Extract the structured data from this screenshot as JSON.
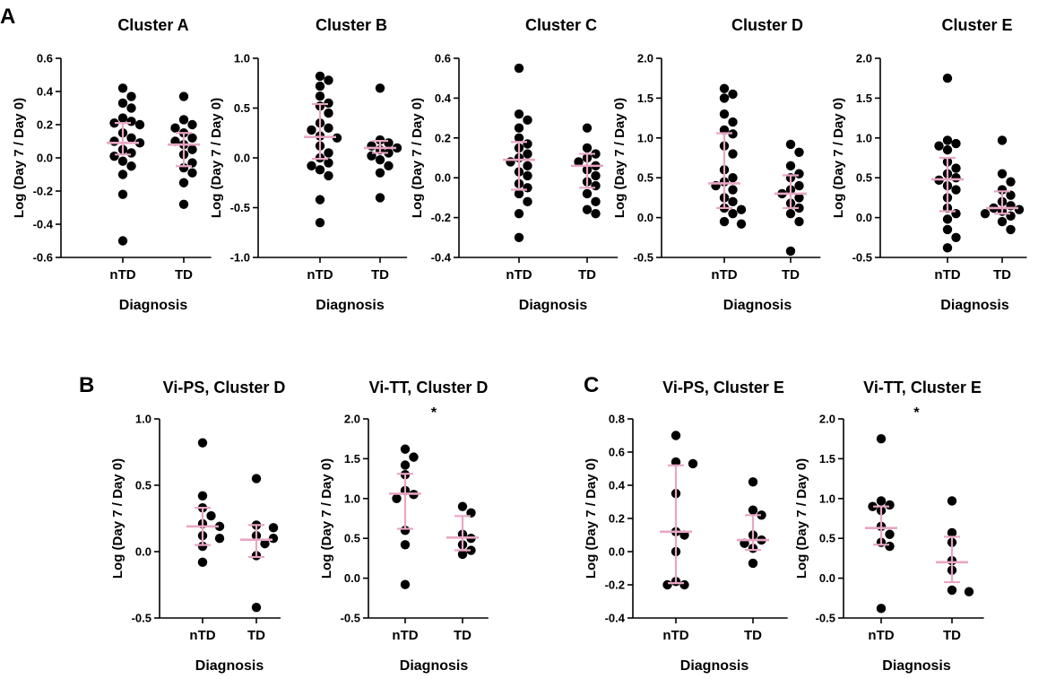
{
  "chart_data": [
    {
      "panel": "A",
      "type": "scatter",
      "title": "Cluster A",
      "xlabel": "Diagnosis",
      "ylabel": "Log (Day 7 / Day 0)",
      "categories": [
        "nTD",
        "TD"
      ],
      "ylim": [
        -0.6,
        0.6
      ],
      "yticks": [
        "-0.6",
        "-0.4",
        "-0.2",
        "0.0",
        "0.2",
        "0.4",
        "0.6"
      ],
      "significance": "",
      "groups": [
        {
          "name": "nTD",
          "median": 0.09,
          "iqr": [
            0.02,
            0.21
          ],
          "values": [
            0.42,
            0.37,
            0.33,
            0.3,
            0.24,
            0.22,
            0.21,
            0.2,
            0.15,
            0.12,
            0.1,
            0.09,
            0.05,
            0.03,
            0.01,
            -0.02,
            -0.05,
            -0.1,
            -0.22,
            -0.5
          ]
        },
        {
          "name": "TD",
          "median": 0.08,
          "iqr": [
            -0.05,
            0.15
          ],
          "values": [
            0.37,
            0.23,
            0.2,
            0.18,
            0.15,
            0.12,
            0.1,
            0.08,
            0.05,
            0.02,
            -0.03,
            -0.06,
            -0.09,
            -0.15,
            -0.28
          ]
        }
      ]
    },
    {
      "panel": "",
      "type": "scatter",
      "title": "Cluster B",
      "xlabel": "Diagnosis",
      "ylabel": "Log (Day 7 / Day 0)",
      "categories": [
        "nTD",
        "TD"
      ],
      "ylim": [
        -1.0,
        1.0
      ],
      "yticks": [
        "-1.0",
        "-0.5",
        "0.0",
        "0.5",
        "1.0"
      ],
      "significance": "",
      "groups": [
        {
          "name": "nTD",
          "median": 0.21,
          "iqr": [
            -0.01,
            0.54
          ],
          "values": [
            0.82,
            0.78,
            0.72,
            0.62,
            0.55,
            0.52,
            0.45,
            0.35,
            0.3,
            0.28,
            0.22,
            0.2,
            0.12,
            0.05,
            0.0,
            -0.05,
            -0.08,
            -0.12,
            -0.18,
            -0.42,
            -0.65
          ]
        },
        {
          "name": "TD",
          "median": 0.1,
          "iqr": [
            0.05,
            0.17
          ],
          "values": [
            0.7,
            0.18,
            0.15,
            0.12,
            0.1,
            0.08,
            0.05,
            0.02,
            -0.02,
            -0.08,
            -0.15,
            -0.4
          ]
        }
      ]
    },
    {
      "panel": "",
      "type": "scatter",
      "title": "Cluster C",
      "xlabel": "Diagnosis",
      "ylabel": "Log (Day 7 / Day 0)",
      "categories": [
        "nTD",
        "TD"
      ],
      "ylim": [
        -0.4,
        0.6
      ],
      "yticks": [
        "-0.4",
        "-0.2",
        "0.0",
        "0.2",
        "0.4",
        "0.6"
      ],
      "significance": "",
      "groups": [
        {
          "name": "nTD",
          "median": 0.09,
          "iqr": [
            -0.06,
            0.18
          ],
          "values": [
            0.55,
            0.32,
            0.29,
            0.25,
            0.2,
            0.17,
            0.15,
            0.12,
            0.1,
            0.08,
            0.06,
            0.03,
            0.01,
            -0.03,
            -0.05,
            -0.08,
            -0.12,
            -0.18,
            -0.3
          ]
        },
        {
          "name": "TD",
          "median": 0.06,
          "iqr": [
            -0.05,
            0.12
          ],
          "values": [
            0.25,
            0.15,
            0.12,
            0.1,
            0.08,
            0.06,
            0.04,
            0.01,
            -0.02,
            -0.04,
            -0.08,
            -0.12,
            -0.16,
            -0.18
          ]
        }
      ]
    },
    {
      "panel": "",
      "type": "scatter",
      "title": "Cluster D",
      "xlabel": "Diagnosis",
      "ylabel": "Log (Day 7 / Day 0)",
      "categories": [
        "nTD",
        "TD"
      ],
      "ylim": [
        -0.5,
        2.0
      ],
      "yticks": [
        "-0.5",
        "0.0",
        "0.5",
        "1.0",
        "1.5",
        "2.0"
      ],
      "significance": "",
      "groups": [
        {
          "name": "nTD",
          "median": 0.43,
          "iqr": [
            0.12,
            1.06
          ],
          "values": [
            1.62,
            1.55,
            1.5,
            1.3,
            1.2,
            1.1,
            1.05,
            0.9,
            0.8,
            0.6,
            0.5,
            0.45,
            0.4,
            0.35,
            0.25,
            0.2,
            0.12,
            0.1,
            0.05,
            -0.05,
            -0.08
          ]
        },
        {
          "name": "TD",
          "median": 0.3,
          "iqr": [
            0.12,
            0.53
          ],
          "values": [
            0.92,
            0.82,
            0.65,
            0.55,
            0.5,
            0.4,
            0.35,
            0.3,
            0.25,
            0.18,
            0.12,
            0.05,
            -0.05,
            -0.42
          ]
        }
      ]
    },
    {
      "panel": "",
      "type": "scatter",
      "title": "Cluster E",
      "xlabel": "Diagnosis",
      "ylabel": "Log (Day 7 / Day 0)",
      "categories": [
        "nTD",
        "TD"
      ],
      "ylim": [
        -0.5,
        2.0
      ],
      "yticks": [
        "-0.5",
        "0.0",
        "0.5",
        "1.0",
        "1.5",
        "2.0"
      ],
      "significance": "",
      "groups": [
        {
          "name": "nTD",
          "median": 0.48,
          "iqr": [
            0.08,
            0.75
          ],
          "values": [
            1.75,
            0.97,
            0.93,
            0.9,
            0.85,
            0.7,
            0.62,
            0.55,
            0.5,
            0.47,
            0.4,
            0.35,
            0.25,
            0.12,
            0.05,
            -0.02,
            -0.15,
            -0.25,
            -0.38
          ]
        },
        {
          "name": "TD",
          "median": 0.12,
          "iqr": [
            0.05,
            0.33
          ],
          "values": [
            0.97,
            0.55,
            0.45,
            0.35,
            0.28,
            0.2,
            0.15,
            0.12,
            0.1,
            0.08,
            0.05,
            0.02,
            -0.05,
            -0.15
          ]
        }
      ]
    },
    {
      "panel": "B",
      "type": "scatter",
      "title": "Vi-PS, Cluster D",
      "xlabel": "Diagnosis",
      "ylabel": "Log (Day 7 / Day 0)",
      "categories": [
        "nTD",
        "TD"
      ],
      "ylim": [
        -0.5,
        1.0
      ],
      "yticks": [
        "-0.5",
        "0.0",
        "0.5",
        "1.0"
      ],
      "significance": "",
      "groups": [
        {
          "name": "nTD",
          "median": 0.19,
          "iqr": [
            0.05,
            0.33
          ],
          "values": [
            0.82,
            0.42,
            0.33,
            0.27,
            0.21,
            0.19,
            0.12,
            0.1,
            0.04,
            -0.08
          ]
        },
        {
          "name": "TD",
          "median": 0.09,
          "iqr": [
            -0.04,
            0.2
          ],
          "values": [
            0.55,
            0.2,
            0.18,
            0.12,
            0.1,
            0.06,
            -0.03,
            -0.42
          ]
        }
      ]
    },
    {
      "panel": "",
      "type": "scatter",
      "title": "Vi-TT, Cluster D",
      "xlabel": "Diagnosis",
      "ylabel": "Log (Day 7 / Day 0)",
      "categories": [
        "nTD",
        "TD"
      ],
      "ylim": [
        -0.5,
        2.0
      ],
      "yticks": [
        "-0.5",
        "0.0",
        "0.5",
        "1.0",
        "1.5",
        "2.0"
      ],
      "significance": "*",
      "groups": [
        {
          "name": "nTD",
          "median": 1.06,
          "iqr": [
            0.62,
            1.31
          ],
          "values": [
            1.62,
            1.52,
            1.42,
            1.3,
            1.1,
            1.05,
            1.0,
            0.6,
            0.42,
            -0.08
          ]
        },
        {
          "name": "TD",
          "median": 0.51,
          "iqr": [
            0.35,
            0.78
          ],
          "values": [
            0.9,
            0.82,
            0.55,
            0.5,
            0.42,
            0.35,
            0.3
          ]
        }
      ]
    },
    {
      "panel": "C",
      "type": "scatter",
      "title": "Vi-PS, Cluster E",
      "xlabel": "Diagnosis",
      "ylabel": "Log (Day 7 / Day 0)",
      "categories": [
        "nTD",
        "TD"
      ],
      "ylim": [
        -0.4,
        0.8
      ],
      "yticks": [
        "-0.4",
        "-0.2",
        "0.0",
        "0.2",
        "0.4",
        "0.6",
        "0.8"
      ],
      "significance": "",
      "groups": [
        {
          "name": "nTD",
          "median": 0.12,
          "iqr": [
            -0.19,
            0.52
          ],
          "values": [
            0.7,
            0.54,
            0.53,
            0.35,
            0.12,
            0.1,
            0.0,
            -0.18,
            -0.2,
            -0.2
          ]
        },
        {
          "name": "TD",
          "median": 0.07,
          "iqr": [
            0.01,
            0.22
          ],
          "values": [
            0.42,
            0.25,
            0.22,
            0.1,
            0.07,
            0.05,
            0.02,
            -0.07
          ]
        }
      ]
    },
    {
      "panel": "",
      "type": "scatter",
      "title": "Vi-TT, Cluster E",
      "xlabel": "Diagnosis",
      "ylabel": "Log (Day 7 / Day 0)",
      "categories": [
        "nTD",
        "TD"
      ],
      "ylim": [
        -0.5,
        2.0
      ],
      "yticks": [
        "-0.5",
        "0.0",
        "0.5",
        "1.0",
        "1.5",
        "2.0"
      ],
      "significance": "*",
      "groups": [
        {
          "name": "nTD",
          "median": 0.63,
          "iqr": [
            0.42,
            0.9
          ],
          "values": [
            1.75,
            0.97,
            0.92,
            0.9,
            0.85,
            0.65,
            0.55,
            0.45,
            0.4,
            -0.38
          ]
        },
        {
          "name": "TD",
          "median": 0.2,
          "iqr": [
            -0.05,
            0.52
          ],
          "values": [
            0.97,
            0.57,
            0.45,
            0.22,
            0.1,
            -0.15,
            -0.17
          ]
        }
      ]
    }
  ]
}
